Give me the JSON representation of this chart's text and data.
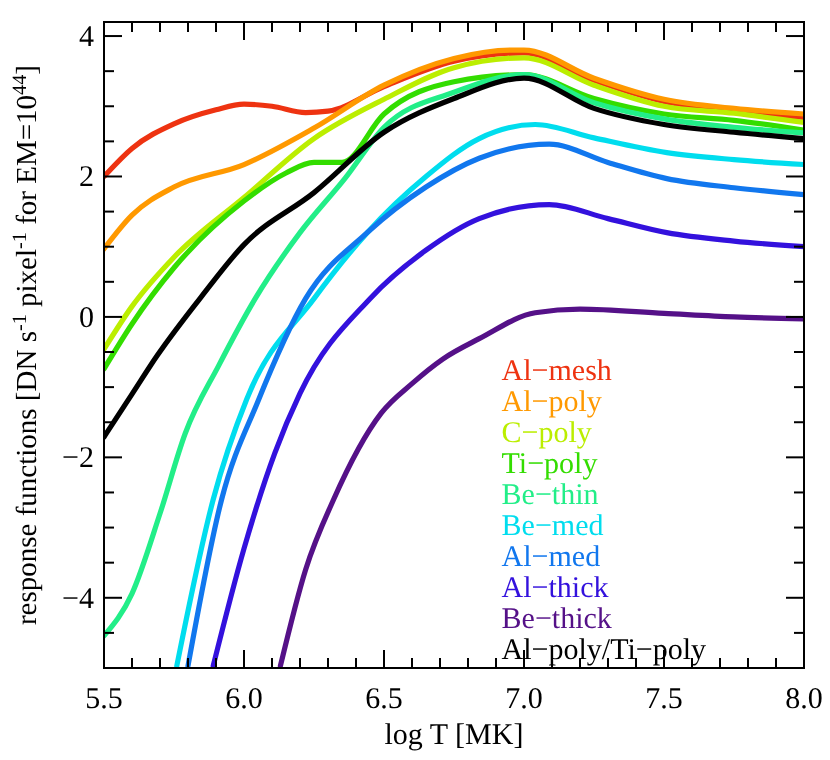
{
  "chart_data": {
    "type": "line",
    "xlabel": "log T [MK]",
    "ylabel": "response functions [DN s$^{-1}$ pixel$^{-1}$ for EM=10$^{44}$]",
    "xlim": [
      5.5,
      8.0
    ],
    "ylim": [
      -5,
      4.2
    ],
    "xticks": [
      5.5,
      {
        "value": 5.6,
        "label": null
      },
      {
        "value": 5.7,
        "label": null
      },
      {
        "value": 5.8,
        "label": null
      },
      {
        "value": 5.9,
        "label": null
      },
      {
        "value": 6,
        "label": "6.0"
      },
      {
        "value": 6.1,
        "label": null
      },
      {
        "value": 6.2,
        "label": null
      },
      {
        "value": 6.3,
        "label": null
      },
      {
        "value": 6.4,
        "label": null
      },
      6.5,
      {
        "value": 6.6,
        "label": null
      },
      {
        "value": 6.7,
        "label": null
      },
      {
        "value": 6.8,
        "label": null
      },
      {
        "value": 6.9,
        "label": null
      },
      {
        "value": 7,
        "label": "7.0"
      },
      {
        "value": 7.1,
        "label": null
      },
      {
        "value": 7.2,
        "label": null
      },
      {
        "value": 7.3,
        "label": null
      },
      {
        "value": 7.4,
        "label": null
      },
      7.5,
      {
        "value": 7.6,
        "label": null
      },
      {
        "value": 7.7,
        "label": null
      },
      {
        "value": 7.8,
        "label": null
      },
      {
        "value": 7.9,
        "label": null
      },
      {
        "value": 8,
        "label": "8.0"
      }
    ],
    "yticks": [
      {
        "value": -4.5,
        "label": null
      },
      {
        "value": -4,
        "label": "−4"
      },
      {
        "value": -3.5,
        "label": null
      },
      {
        "value": -3,
        "label": null
      },
      {
        "value": -2.5,
        "label": null
      },
      {
        "value": -2,
        "label": "−2"
      },
      {
        "value": -1.5,
        "label": null
      },
      {
        "value": -1,
        "label": null
      },
      {
        "value": -0.5,
        "label": null
      },
      0,
      {
        "value": 0.5,
        "label": null
      },
      {
        "value": 1,
        "label": null
      },
      {
        "value": 1.5,
        "label": null
      },
      2,
      {
        "value": 2.5,
        "label": null
      },
      {
        "value": 3,
        "label": null
      },
      {
        "value": 3.5,
        "label": null
      },
      4
    ],
    "grid": false,
    "legend": "bottom right",
    "line_style": "solid",
    "marker": "none",
    "series": [
      {
        "name": "Al−mesh",
        "color": "#ee3311",
        "x": [
          5.5,
          5.6,
          5.75,
          5.9,
          6.0,
          6.1,
          6.22,
          6.3,
          6.5,
          6.75,
          7.0,
          7.25,
          7.5,
          7.75,
          8.0
        ],
        "values": [
          2.0,
          2.4,
          2.75,
          2.95,
          3.03,
          3.0,
          2.91,
          2.93,
          3.28,
          3.64,
          3.76,
          3.37,
          3.07,
          2.94,
          2.84
        ]
      },
      {
        "name": "Al−poly",
        "color": "#ff9900",
        "x": [
          5.5,
          5.6,
          5.75,
          6.0,
          6.25,
          6.5,
          6.75,
          6.95,
          7.0,
          7.25,
          7.5,
          7.75,
          8.0
        ],
        "values": [
          0.97,
          1.45,
          1.85,
          2.17,
          2.69,
          3.3,
          3.68,
          3.8,
          3.8,
          3.4,
          3.1,
          2.97,
          2.89
        ]
      },
      {
        "name": "C−poly",
        "color": "#bbee00",
        "x": [
          5.5,
          5.6,
          5.75,
          6.0,
          6.25,
          6.5,
          6.75,
          7.0,
          7.25,
          7.5,
          7.75,
          8.0
        ],
        "values": [
          -0.46,
          0.15,
          0.85,
          1.7,
          2.54,
          3.1,
          3.55,
          3.69,
          3.3,
          3.0,
          2.9,
          2.77
        ]
      },
      {
        "name": "Ti−poly",
        "color": "#33dd00",
        "x": [
          5.5,
          5.6,
          5.75,
          6.0,
          6.15,
          6.25,
          6.35,
          6.5,
          6.75,
          7.0,
          7.25,
          7.5,
          7.75,
          8.0
        ],
        "values": [
          -0.74,
          -0.1,
          0.7,
          1.65,
          2.05,
          2.2,
          2.2,
          2.89,
          3.35,
          3.45,
          3.11,
          2.89,
          2.8,
          2.66
        ]
      },
      {
        "name": "Be−thin",
        "color": "#22ee88",
        "x": [
          5.5,
          5.6,
          5.7,
          5.79,
          5.91,
          6.04,
          6.2,
          6.36,
          6.5,
          6.75,
          7.0,
          7.25,
          7.5,
          7.75,
          8.0
        ],
        "values": [
          -4.54,
          -3.94,
          -2.8,
          -1.66,
          -0.69,
          0.26,
          1.2,
          1.97,
          2.7,
          3.2,
          3.45,
          3.05,
          2.82,
          2.7,
          2.62
        ]
      },
      {
        "name": "Be−med",
        "color": "#00ddee",
        "x": [
          5.76,
          5.89,
          6.01,
          6.25,
          6.44,
          6.65,
          6.84,
          7.04,
          7.25,
          7.51,
          7.75,
          8.0
        ],
        "values": [
          -4.97,
          -2.6,
          -1.17,
          0.26,
          1.2,
          2.0,
          2.54,
          2.74,
          2.55,
          2.34,
          2.24,
          2.17
        ]
      },
      {
        "name": "Al−med",
        "color": "#1177ee",
        "x": [
          5.8,
          5.92,
          6.05,
          6.22,
          6.44,
          6.65,
          6.84,
          7.09,
          7.3,
          7.51,
          7.75,
          8.0
        ],
        "values": [
          -4.97,
          -2.6,
          -1.2,
          0.26,
          1.2,
          1.85,
          2.26,
          2.46,
          2.2,
          1.97,
          1.84,
          1.74
        ]
      },
      {
        "name": "Al−thick",
        "color": "#3311dd",
        "x": [
          5.89,
          6.0,
          6.11,
          6.2,
          6.45,
          6.65,
          6.84,
          7.09,
          7.3,
          7.51,
          7.75,
          8.0
        ],
        "values": [
          -4.97,
          -3.3,
          -1.94,
          -1.09,
          0.26,
          0.95,
          1.4,
          1.6,
          1.4,
          1.2,
          1.08,
          1.0
        ]
      },
      {
        "name": "Be−thick",
        "color": "#551188",
        "x": [
          6.13,
          6.22,
          6.32,
          6.49,
          6.6,
          6.71,
          6.84,
          7.04,
          7.2,
          7.5,
          7.75,
          8.0
        ],
        "values": [
          -4.97,
          -3.6,
          -2.6,
          -1.37,
          -0.95,
          -0.6,
          -0.31,
          0.06,
          0.11,
          0.05,
          0.0,
          -0.03
        ]
      },
      {
        "name": "Al−poly/Ti−poly",
        "color": "#000000",
        "x": [
          5.5,
          5.6,
          5.69,
          5.85,
          6.0,
          6.25,
          6.5,
          6.75,
          7.0,
          7.25,
          7.5,
          7.75,
          8.0
        ],
        "values": [
          -1.71,
          -1.1,
          -0.55,
          0.3,
          1.03,
          1.77,
          2.63,
          3.11,
          3.4,
          2.97,
          2.74,
          2.63,
          2.54
        ]
      }
    ]
  }
}
